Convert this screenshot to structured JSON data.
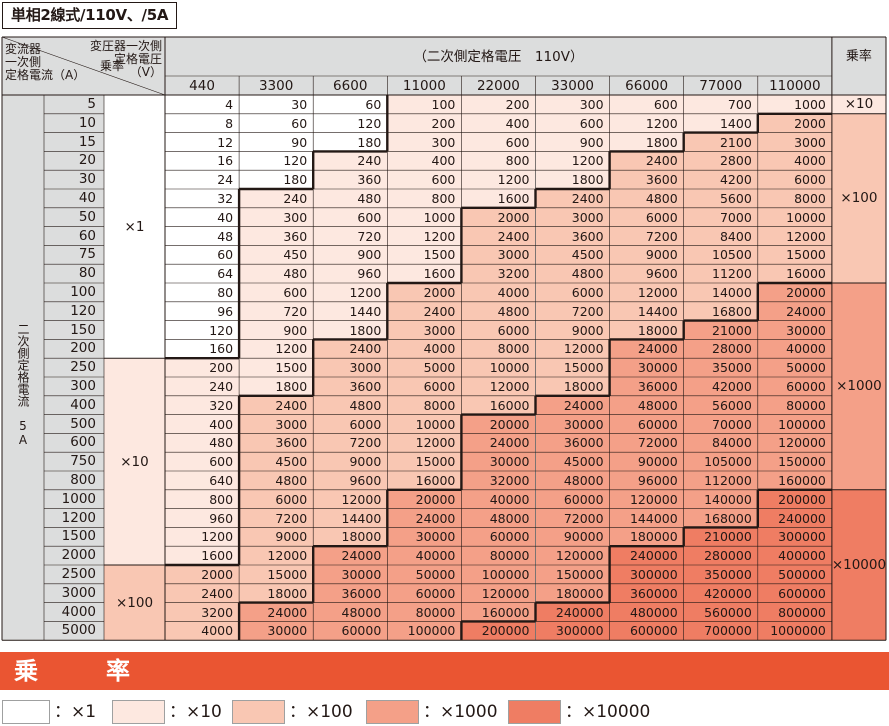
{
  "title": "単相2線式/110V、/5A",
  "header": {
    "ct_label": [
      "変流器",
      "一次側",
      "定格電流（A）"
    ],
    "vt_label": [
      "変圧器一次側",
      "定格電圧（V）"
    ],
    "mult_label": "乗率",
    "secondary_voltage": "（二次側定格電圧　110V）",
    "right_mult_label": "乗率",
    "voltages": [
      "440",
      "3300",
      "6600",
      "11000",
      "22000",
      "33000",
      "66000",
      "77000",
      "110000"
    ]
  },
  "side_label": "二次側定格電流　5A",
  "currents": [
    "5",
    "10",
    "15",
    "20",
    "30",
    "40",
    "50",
    "60",
    "75",
    "80",
    "100",
    "120",
    "150",
    "200",
    "250",
    "300",
    "400",
    "500",
    "600",
    "750",
    "800",
    "1000",
    "1200",
    "1500",
    "2000",
    "2500",
    "3000",
    "4000",
    "5000"
  ],
  "left_multipliers": [
    {
      "label": "×1",
      "rows": [
        0,
        13
      ]
    },
    {
      "label": "×10",
      "rows": [
        14,
        24
      ]
    },
    {
      "label": "×100",
      "rows": [
        25,
        28
      ]
    }
  ],
  "right_multipliers": [
    {
      "label": "×10",
      "rows": [
        0,
        0
      ]
    },
    {
      "label": "×100",
      "rows": [
        1,
        9
      ]
    },
    {
      "label": "×1000",
      "rows": [
        10,
        20
      ]
    },
    {
      "label": "×10000",
      "rows": [
        21,
        28
      ]
    }
  ],
  "rows": [
    [
      "4",
      "30",
      "60",
      "100",
      "200",
      "300",
      "600",
      "700",
      "1000"
    ],
    [
      "8",
      "60",
      "120",
      "200",
      "400",
      "600",
      "1200",
      "1400",
      "2000"
    ],
    [
      "12",
      "90",
      "180",
      "300",
      "600",
      "900",
      "1800",
      "2100",
      "3000"
    ],
    [
      "16",
      "120",
      "240",
      "400",
      "800",
      "1200",
      "2400",
      "2800",
      "4000"
    ],
    [
      "24",
      "180",
      "360",
      "600",
      "1200",
      "1800",
      "3600",
      "4200",
      "6000"
    ],
    [
      "32",
      "240",
      "480",
      "800",
      "1600",
      "2400",
      "4800",
      "5600",
      "8000"
    ],
    [
      "40",
      "300",
      "600",
      "1000",
      "2000",
      "3000",
      "6000",
      "7000",
      "10000"
    ],
    [
      "48",
      "360",
      "720",
      "1200",
      "2400",
      "3600",
      "7200",
      "8400",
      "12000"
    ],
    [
      "60",
      "450",
      "900",
      "1500",
      "3000",
      "4500",
      "9000",
      "10500",
      "15000"
    ],
    [
      "64",
      "480",
      "960",
      "1600",
      "3200",
      "4800",
      "9600",
      "11200",
      "16000"
    ],
    [
      "80",
      "600",
      "1200",
      "2000",
      "4000",
      "6000",
      "12000",
      "14000",
      "20000"
    ],
    [
      "96",
      "720",
      "1440",
      "2400",
      "4800",
      "7200",
      "14400",
      "16800",
      "24000"
    ],
    [
      "120",
      "900",
      "1800",
      "3000",
      "6000",
      "9000",
      "18000",
      "21000",
      "30000"
    ],
    [
      "160",
      "1200",
      "2400",
      "4000",
      "8000",
      "12000",
      "24000",
      "28000",
      "40000"
    ],
    [
      "200",
      "1500",
      "3000",
      "5000",
      "10000",
      "15000",
      "30000",
      "35000",
      "50000"
    ],
    [
      "240",
      "1800",
      "3600",
      "6000",
      "12000",
      "18000",
      "36000",
      "42000",
      "60000"
    ],
    [
      "320",
      "2400",
      "4800",
      "8000",
      "16000",
      "24000",
      "48000",
      "56000",
      "80000"
    ],
    [
      "400",
      "3000",
      "6000",
      "10000",
      "20000",
      "30000",
      "60000",
      "70000",
      "100000"
    ],
    [
      "480",
      "3600",
      "7200",
      "12000",
      "24000",
      "36000",
      "72000",
      "84000",
      "120000"
    ],
    [
      "600",
      "4500",
      "9000",
      "15000",
      "30000",
      "45000",
      "90000",
      "105000",
      "150000"
    ],
    [
      "640",
      "4800",
      "9600",
      "16000",
      "32000",
      "48000",
      "96000",
      "112000",
      "160000"
    ],
    [
      "800",
      "6000",
      "12000",
      "20000",
      "40000",
      "60000",
      "120000",
      "140000",
      "200000"
    ],
    [
      "960",
      "7200",
      "14400",
      "24000",
      "48000",
      "72000",
      "144000",
      "168000",
      "240000"
    ],
    [
      "1200",
      "9000",
      "18000",
      "30000",
      "60000",
      "90000",
      "180000",
      "210000",
      "300000"
    ],
    [
      "1600",
      "12000",
      "24000",
      "40000",
      "80000",
      "120000",
      "240000",
      "280000",
      "400000"
    ],
    [
      "2000",
      "15000",
      "30000",
      "50000",
      "100000",
      "150000",
      "300000",
      "350000",
      "500000"
    ],
    [
      "2400",
      "18000",
      "36000",
      "60000",
      "120000",
      "180000",
      "360000",
      "420000",
      "600000"
    ],
    [
      "3200",
      "24000",
      "48000",
      "80000",
      "160000",
      "240000",
      "480000",
      "560000",
      "800000"
    ],
    [
      "4000",
      "30000",
      "60000",
      "100000",
      "200000",
      "300000",
      "600000",
      "700000",
      "1000000"
    ]
  ],
  "levels": [
    [
      0,
      0,
      0,
      1,
      1,
      1,
      1,
      1,
      1
    ],
    [
      0,
      0,
      0,
      1,
      1,
      1,
      1,
      1,
      2
    ],
    [
      0,
      0,
      0,
      1,
      1,
      1,
      1,
      2,
      2
    ],
    [
      0,
      0,
      1,
      1,
      1,
      1,
      2,
      2,
      2
    ],
    [
      0,
      0,
      1,
      1,
      1,
      1,
      2,
      2,
      2
    ],
    [
      0,
      1,
      1,
      1,
      1,
      2,
      2,
      2,
      2
    ],
    [
      0,
      1,
      1,
      1,
      2,
      2,
      2,
      2,
      2
    ],
    [
      0,
      1,
      1,
      1,
      2,
      2,
      2,
      2,
      2
    ],
    [
      0,
      1,
      1,
      1,
      2,
      2,
      2,
      2,
      2
    ],
    [
      0,
      1,
      1,
      1,
      2,
      2,
      2,
      2,
      2
    ],
    [
      0,
      1,
      1,
      2,
      2,
      2,
      2,
      2,
      3
    ],
    [
      0,
      1,
      1,
      2,
      2,
      2,
      2,
      2,
      3
    ],
    [
      0,
      1,
      1,
      2,
      2,
      2,
      2,
      3,
      3
    ],
    [
      0,
      1,
      2,
      2,
      2,
      2,
      3,
      3,
      3
    ],
    [
      1,
      1,
      2,
      2,
      2,
      2,
      3,
      3,
      3
    ],
    [
      1,
      1,
      2,
      2,
      2,
      2,
      3,
      3,
      3
    ],
    [
      1,
      2,
      2,
      2,
      2,
      3,
      3,
      3,
      3
    ],
    [
      1,
      2,
      2,
      2,
      3,
      3,
      3,
      3,
      3
    ],
    [
      1,
      2,
      2,
      2,
      3,
      3,
      3,
      3,
      3
    ],
    [
      1,
      2,
      2,
      2,
      3,
      3,
      3,
      3,
      3
    ],
    [
      1,
      2,
      2,
      2,
      3,
      3,
      3,
      3,
      3
    ],
    [
      1,
      2,
      2,
      3,
      3,
      3,
      3,
      3,
      4
    ],
    [
      1,
      2,
      2,
      3,
      3,
      3,
      3,
      3,
      4
    ],
    [
      1,
      2,
      2,
      3,
      3,
      3,
      3,
      4,
      4
    ],
    [
      1,
      2,
      3,
      3,
      3,
      3,
      4,
      4,
      4
    ],
    [
      2,
      2,
      3,
      3,
      3,
      3,
      4,
      4,
      4
    ],
    [
      2,
      2,
      3,
      3,
      3,
      3,
      4,
      4,
      4
    ],
    [
      2,
      3,
      3,
      3,
      3,
      4,
      4,
      4,
      4
    ],
    [
      2,
      3,
      3,
      3,
      4,
      4,
      4,
      4,
      4
    ]
  ],
  "colors": [
    "#ffffff",
    "#fde8e0",
    "#f9c7b3",
    "#f4a088",
    "#ef7d63"
  ],
  "band_title": "乗　率",
  "legend": [
    {
      "label": "：×1"
    },
    {
      "label": "：×10"
    },
    {
      "label": "：×100"
    },
    {
      "label": "：×1000"
    },
    {
      "label": "：×10000"
    }
  ]
}
